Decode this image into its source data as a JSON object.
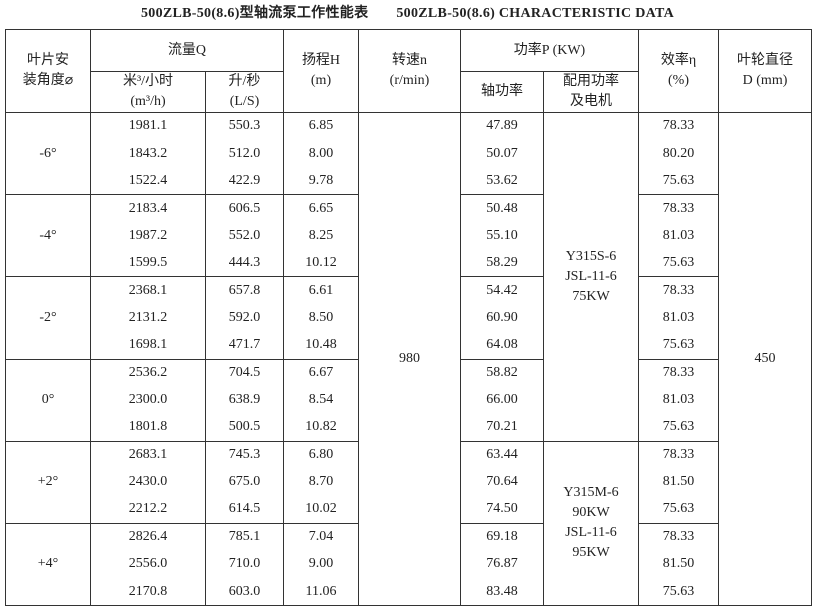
{
  "title_cn": "500ZLB-50(8.6)型轴流泵工作性能表",
  "title_en": "500ZLB-50(8.6) CHARACTERISTIC DATA",
  "header": {
    "angle": [
      "叶片安",
      "装角度⌀"
    ],
    "flow": "流量Q",
    "flow_m3h": [
      "米³/小时",
      "(m³/h)"
    ],
    "flow_ls": [
      "升/秒",
      "(L/S)"
    ],
    "head": [
      "扬程H",
      "(m)"
    ],
    "speed": [
      "转速n",
      "(r/min)"
    ],
    "power": "功率P (KW)",
    "shaft": "轴功率",
    "motor": [
      "配用功率",
      "及电机"
    ],
    "eff": [
      "效率η",
      "(%)"
    ],
    "diam": [
      "叶轮直径",
      "D (mm)"
    ]
  },
  "speed": "980",
  "diameter": "450",
  "motors": [
    [
      "Y315S-6",
      "JSL-11-6",
      "75KW"
    ],
    [
      "Y315M-6",
      "90KW",
      "JSL-11-6",
      "95KW"
    ]
  ],
  "groups": [
    {
      "angle": "-6°",
      "rows": [
        [
          "1981.1",
          "550.3",
          "6.85",
          "47.89",
          "78.33"
        ],
        [
          "1843.2",
          "512.0",
          "8.00",
          "50.07",
          "80.20"
        ],
        [
          "1522.4",
          "422.9",
          "9.78",
          "53.62",
          "75.63"
        ]
      ]
    },
    {
      "angle": "-4°",
      "rows": [
        [
          "2183.4",
          "606.5",
          "6.65",
          "50.48",
          "78.33"
        ],
        [
          "1987.2",
          "552.0",
          "8.25",
          "55.10",
          "81.03"
        ],
        [
          "1599.5",
          "444.3",
          "10.12",
          "58.29",
          "75.63"
        ]
      ]
    },
    {
      "angle": "-2°",
      "rows": [
        [
          "2368.1",
          "657.8",
          "6.61",
          "54.42",
          "78.33"
        ],
        [
          "2131.2",
          "592.0",
          "8.50",
          "60.90",
          "81.03"
        ],
        [
          "1698.1",
          "471.7",
          "10.48",
          "64.08",
          "75.63"
        ]
      ]
    },
    {
      "angle": "0°",
      "rows": [
        [
          "2536.2",
          "704.5",
          "6.67",
          "58.82",
          "78.33"
        ],
        [
          "2300.0",
          "638.9",
          "8.54",
          "66.00",
          "81.03"
        ],
        [
          "1801.8",
          "500.5",
          "10.82",
          "70.21",
          "75.63"
        ]
      ]
    },
    {
      "angle": "+2°",
      "rows": [
        [
          "2683.1",
          "745.3",
          "6.80",
          "63.44",
          "78.33"
        ],
        [
          "2430.0",
          "675.0",
          "8.70",
          "70.64",
          "81.50"
        ],
        [
          "2212.2",
          "614.5",
          "10.02",
          "74.50",
          "75.63"
        ]
      ]
    },
    {
      "angle": "+4°",
      "rows": [
        [
          "2826.4",
          "785.1",
          "7.04",
          "69.18",
          "78.33"
        ],
        [
          "2556.0",
          "710.0",
          "9.00",
          "76.87",
          "81.50"
        ],
        [
          "2170.8",
          "603.0",
          "11.06",
          "83.48",
          "75.63"
        ]
      ]
    }
  ]
}
